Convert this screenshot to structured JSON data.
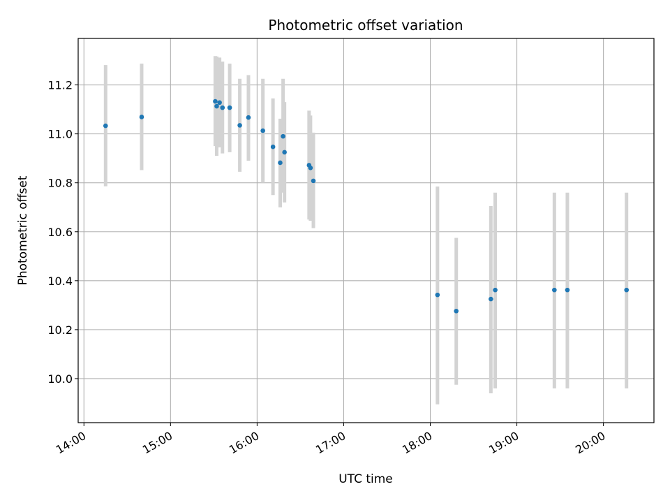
{
  "chart_data": {
    "type": "scatter",
    "title": "Photometric offset variation",
    "xlabel": "UTC time",
    "ylabel": "Photometric offset",
    "grid": true,
    "xlim": [
      "13:56",
      "20:35"
    ],
    "ylim": [
      9.82,
      11.39
    ],
    "x_ticks": [
      "14:00",
      "15:00",
      "16:00",
      "17:00",
      "18:00",
      "19:00",
      "20:00"
    ],
    "y_ticks": [
      10.0,
      10.2,
      10.4,
      10.6,
      10.8,
      11.0,
      11.2
    ],
    "y_tick_labels": [
      "10.0",
      "10.2",
      "10.4",
      "10.6",
      "10.8",
      "11.0",
      "11.2"
    ],
    "colors": {
      "point": "#1f77b4",
      "errorbar": "#d3d3d3",
      "grid": "#b0b0b0"
    },
    "points": [
      {
        "x": "14:15",
        "y": 11.033,
        "lo": 10.786,
        "hi": 11.281
      },
      {
        "x": "14:40",
        "y": 11.069,
        "lo": 10.852,
        "hi": 11.287
      },
      {
        "x": "15:31",
        "y": 11.133,
        "lo": 10.95,
        "hi": 11.318
      },
      {
        "x": "15:32",
        "y": 11.113,
        "lo": 10.91,
        "hi": 11.316
      },
      {
        "x": "15:34",
        "y": 11.128,
        "lo": 10.945,
        "hi": 11.312
      },
      {
        "x": "15:36",
        "y": 11.107,
        "lo": 10.92,
        "hi": 11.295
      },
      {
        "x": "15:41",
        "y": 11.107,
        "lo": 10.925,
        "hi": 11.287
      },
      {
        "x": "15:48",
        "y": 11.035,
        "lo": 10.845,
        "hi": 11.225
      },
      {
        "x": "15:54",
        "y": 11.067,
        "lo": 10.89,
        "hi": 11.24
      },
      {
        "x": "16:04",
        "y": 11.013,
        "lo": 10.8,
        "hi": 11.225
      },
      {
        "x": "16:11",
        "y": 10.947,
        "lo": 10.75,
        "hi": 11.145
      },
      {
        "x": "16:16",
        "y": 10.882,
        "lo": 10.7,
        "hi": 11.062
      },
      {
        "x": "16:18",
        "y": 10.99,
        "lo": 10.76,
        "hi": 11.225
      },
      {
        "x": "16:19",
        "y": 10.925,
        "lo": 10.72,
        "hi": 11.13
      },
      {
        "x": "16:36",
        "y": 10.872,
        "lo": 10.65,
        "hi": 11.095
      },
      {
        "x": "16:37",
        "y": 10.861,
        "lo": 10.645,
        "hi": 11.075
      },
      {
        "x": "16:39",
        "y": 10.808,
        "lo": 10.615,
        "hi": 11.005
      },
      {
        "x": "18:05",
        "y": 10.342,
        "lo": 9.895,
        "hi": 10.785
      },
      {
        "x": "18:18",
        "y": 10.276,
        "lo": 9.975,
        "hi": 10.575
      },
      {
        "x": "18:42",
        "y": 10.325,
        "lo": 9.94,
        "hi": 10.705
      },
      {
        "x": "18:45",
        "y": 10.362,
        "lo": 9.96,
        "hi": 10.76
      },
      {
        "x": "19:26",
        "y": 10.362,
        "lo": 9.96,
        "hi": 10.76
      },
      {
        "x": "19:35",
        "y": 10.362,
        "lo": 9.96,
        "hi": 10.76
      },
      {
        "x": "20:16",
        "y": 10.362,
        "lo": 9.96,
        "hi": 10.76
      }
    ]
  }
}
